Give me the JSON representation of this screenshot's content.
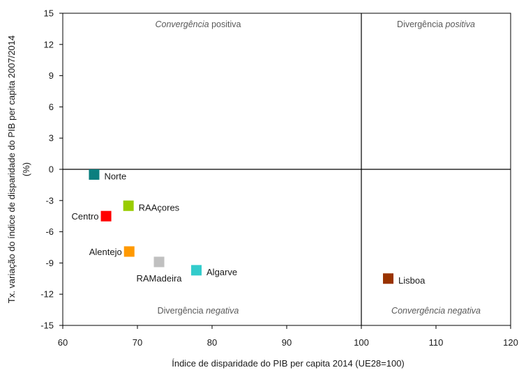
{
  "chart_data": {
    "type": "scatter",
    "xlabel": "Índice de disparidade do PIB per capita 2014 (UE28=100)",
    "ylabel_line1": "Tx. variação do índice de disparidade do PIB per capita 2007/2014",
    "ylabel_line2": "(%)",
    "xlim": [
      60,
      120
    ],
    "ylim": [
      -15,
      15
    ],
    "xticks": [
      60,
      70,
      80,
      90,
      100,
      110,
      120
    ],
    "yticks": [
      15,
      12,
      9,
      6,
      3,
      0,
      -3,
      -6,
      -9,
      -12,
      -15
    ],
    "grid": false,
    "reference_lines": {
      "x": 100,
      "y": 0
    },
    "points": [
      {
        "name": "Norte",
        "x": 64.2,
        "y": -0.5,
        "color": "#0b7f7f",
        "label_side": "right"
      },
      {
        "name": "RAAçores",
        "x": 68.8,
        "y": -3.5,
        "color": "#99cc00",
        "label_side": "right"
      },
      {
        "name": "Centro",
        "x": 65.8,
        "y": -4.5,
        "color": "#ff0000",
        "label_side": "left"
      },
      {
        "name": "Alentejo",
        "x": 68.9,
        "y": -7.9,
        "color": "#ff9900",
        "label_side": "left"
      },
      {
        "name": "RAMadeira",
        "x": 72.9,
        "y": -8.9,
        "color": "#c0c0c0",
        "label_side": "below"
      },
      {
        "name": "Algarve",
        "x": 77.9,
        "y": -9.7,
        "color": "#33cccc",
        "label_side": "right"
      },
      {
        "name": "Lisboa",
        "x": 103.6,
        "y": -10.5,
        "color": "#993300",
        "label_side": "right"
      }
    ],
    "quadrant_labels": {
      "top_left": {
        "word1": "Convergência",
        "word2": "positiva"
      },
      "top_right": {
        "word1": "Divergência",
        "word2": "positiva"
      },
      "bottom_left": {
        "word1": "Divergência",
        "word2": "negativa"
      },
      "bottom_right": {
        "word1": "Convergência",
        "word2": "negativa"
      }
    }
  }
}
